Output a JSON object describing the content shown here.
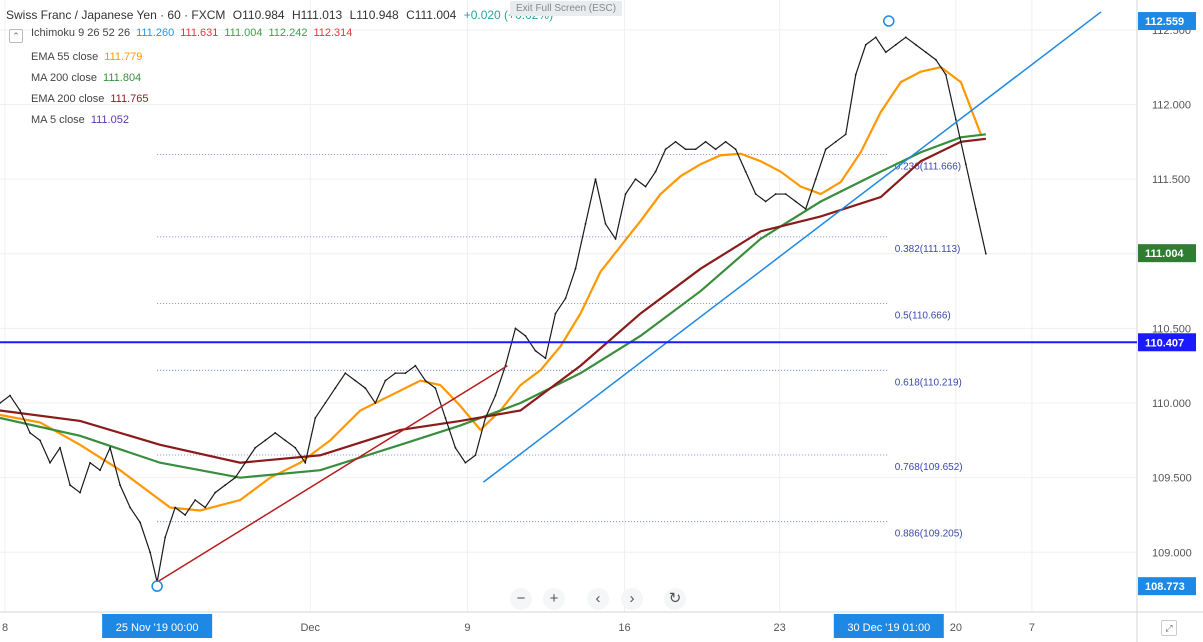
{
  "header": {
    "symbol": "Swiss Franc / Japanese Yen · 60 · FXCM",
    "open": "O110.984",
    "high": "H111.013",
    "low": "L110.948",
    "close": "C111.004",
    "change": "+0.020 (+0.02%)"
  },
  "fullscreen_badge": "Exit Full Screen (ESC)",
  "indicators": [
    {
      "label": "Ichimoku 9 26 52 26",
      "values": [
        {
          "text": "111.260",
          "color": "#2196f3"
        },
        {
          "text": "111.631",
          "color": "#e53935"
        },
        {
          "text": "111.004",
          "color": "#43a047"
        },
        {
          "text": "112.242",
          "color": "#43a047"
        },
        {
          "text": "112.314",
          "color": "#e53935"
        }
      ]
    },
    {
      "label": "EMA 55 close",
      "values": [
        {
          "text": "111.779",
          "color": "#ff9800"
        }
      ]
    },
    {
      "label": "MA 200 close",
      "values": [
        {
          "text": "111.804",
          "color": "#388e3c"
        }
      ]
    },
    {
      "label": "EMA 200 close",
      "values": [
        {
          "text": "111.765",
          "color": "#8b1a1a"
        }
      ]
    },
    {
      "label": "MA 5 close",
      "values": [
        {
          "text": "111.052",
          "color": "#5e35b1"
        }
      ]
    }
  ],
  "chart_data": {
    "type": "line",
    "title": "Swiss Franc / Japanese Yen · 60 · FXCM",
    "ylim": [
      108.6,
      112.7
    ],
    "y_ticks": [
      109.0,
      109.5,
      110.0,
      110.5,
      111.0,
      111.5,
      112.0,
      112.5
    ],
    "y_tick_labels": [
      "109.000",
      "109.500",
      "110.000",
      "110.500",
      "111.000",
      "111.500",
      "112.000",
      "112.500"
    ],
    "x_range": [
      0,
      1136
    ],
    "x_tick_labels": [
      {
        "label": "8",
        "x": 5
      },
      {
        "label": "Dec",
        "x": 310
      },
      {
        "label": "9",
        "x": 467
      },
      {
        "label": "16",
        "x": 624
      },
      {
        "label": "23",
        "x": 779
      },
      {
        "label": "20",
        "x": 955
      },
      {
        "label": "7",
        "x": 1031
      }
    ],
    "x_highlight_labels": [
      {
        "label": "25 Nov '19   00:00",
        "x": 157
      },
      {
        "label": "30 Dec '19   01:00",
        "x": 888
      }
    ],
    "price_labels": [
      {
        "text": "112.559",
        "value": 112.559,
        "color": "#1e88e5"
      },
      {
        "text": "111.004",
        "value": 111.004,
        "color": "#2e7d32"
      },
      {
        "text": "110.407",
        "value": 110.407,
        "color": "#1a1aff"
      },
      {
        "text": "108.773",
        "value": 108.773,
        "color": "#1e88e5"
      }
    ],
    "horizontal_line": {
      "value": 110.407,
      "color": "#1a1aff"
    },
    "fibonacci": [
      {
        "label": "0.236(111.666)",
        "value": 111.666
      },
      {
        "label": "0.382(111.113)",
        "value": 111.113
      },
      {
        "label": "0.5(110.666)",
        "value": 110.666
      },
      {
        "label": "0.618(110.219)",
        "value": 110.219
      },
      {
        "label": "0.768(109.652)",
        "value": 109.652
      },
      {
        "label": "0.886(109.205)",
        "value": 109.205
      }
    ],
    "fib_start_x": 157,
    "fib_end_x": 888,
    "swing_low": {
      "x": 157,
      "y": 108.773
    },
    "swing_high": {
      "x": 888,
      "y": 112.559
    },
    "trendlines": [
      {
        "name": "red-trendline",
        "color": "#b71c1c",
        "x1": 152,
        "y1": 108.78,
        "x2": 507,
        "y2": 110.25
      },
      {
        "name": "blue-trendline",
        "color": "#1e88e5",
        "x1": 483,
        "y1": 109.47,
        "x2": 1100,
        "y2": 112.62
      }
    ],
    "series": [
      {
        "name": "price",
        "color": "#1a1a1a",
        "x": [
          0,
          10,
          20,
          30,
          40,
          50,
          60,
          70,
          80,
          90,
          100,
          110,
          120,
          130,
          140,
          150,
          157,
          165,
          175,
          185,
          195,
          205,
          215,
          225,
          235,
          245,
          255,
          265,
          275,
          285,
          295,
          305,
          315,
          325,
          335,
          345,
          355,
          365,
          375,
          385,
          395,
          405,
          415,
          425,
          435,
          445,
          455,
          465,
          475,
          485,
          495,
          505,
          515,
          525,
          535,
          545,
          555,
          565,
          575,
          585,
          595,
          605,
          615,
          625,
          635,
          645,
          655,
          665,
          675,
          685,
          695,
          705,
          715,
          725,
          735,
          745,
          755,
          765,
          775,
          785,
          795,
          805,
          815,
          825,
          835,
          845,
          855,
          865,
          875,
          885,
          895,
          905,
          915,
          925,
          935,
          945,
          955,
          965,
          975,
          985
        ],
        "y": [
          110.0,
          110.05,
          109.95,
          109.8,
          109.75,
          109.6,
          109.7,
          109.45,
          109.4,
          109.6,
          109.55,
          109.7,
          109.45,
          109.3,
          109.2,
          109.0,
          108.8,
          109.1,
          109.3,
          109.25,
          109.35,
          109.3,
          109.4,
          109.45,
          109.5,
          109.6,
          109.7,
          109.75,
          109.8,
          109.75,
          109.7,
          109.6,
          109.9,
          110.0,
          110.1,
          110.2,
          110.15,
          110.1,
          110.0,
          110.15,
          110.2,
          110.2,
          110.25,
          110.15,
          110.1,
          109.9,
          109.7,
          109.6,
          109.65,
          109.9,
          110.05,
          110.25,
          110.5,
          110.45,
          110.35,
          110.3,
          110.6,
          110.7,
          110.9,
          111.2,
          111.5,
          111.2,
          111.1,
          111.4,
          111.5,
          111.45,
          111.55,
          111.7,
          111.75,
          111.7,
          111.7,
          111.75,
          111.7,
          111.75,
          111.7,
          111.55,
          111.4,
          111.35,
          111.4,
          111.4,
          111.35,
          111.3,
          111.5,
          111.7,
          111.75,
          111.8,
          112.2,
          112.4,
          112.45,
          112.35,
          112.4,
          112.45,
          112.4,
          112.35,
          112.3,
          112.2,
          111.9,
          111.6,
          111.3,
          111.0
        ]
      },
      {
        "name": "EMA 55 close",
        "color": "#ff9800",
        "x": [
          0,
          40,
          80,
          120,
          150,
          170,
          200,
          240,
          270,
          300,
          330,
          360,
          390,
          420,
          440,
          460,
          480,
          500,
          520,
          540,
          560,
          580,
          600,
          620,
          640,
          660,
          680,
          700,
          720,
          740,
          760,
          780,
          800,
          820,
          840,
          860,
          880,
          900,
          920,
          940,
          960,
          980
        ],
        "y": [
          109.92,
          109.87,
          109.72,
          109.55,
          109.4,
          109.3,
          109.28,
          109.35,
          109.5,
          109.6,
          109.75,
          109.95,
          110.05,
          110.15,
          110.12,
          109.98,
          109.82,
          109.95,
          110.12,
          110.22,
          110.38,
          110.6,
          110.88,
          111.05,
          111.22,
          111.4,
          111.52,
          111.6,
          111.66,
          111.67,
          111.62,
          111.55,
          111.45,
          111.4,
          111.48,
          111.68,
          111.95,
          112.15,
          112.22,
          112.25,
          112.15,
          111.8
        ]
      },
      {
        "name": "MA 200 close",
        "color": "#388e3c",
        "x": [
          0,
          80,
          160,
          240,
          320,
          400,
          460,
          520,
          580,
          640,
          700,
          760,
          820,
          880,
          920,
          960,
          985
        ],
        "y": [
          109.9,
          109.78,
          109.6,
          109.5,
          109.55,
          109.72,
          109.85,
          110.0,
          110.2,
          110.45,
          110.75,
          111.1,
          111.35,
          111.55,
          111.68,
          111.78,
          111.8
        ]
      },
      {
        "name": "EMA 200 close",
        "color": "#8b1a1a",
        "x": [
          0,
          80,
          160,
          240,
          320,
          400,
          460,
          520,
          580,
          640,
          700,
          760,
          820,
          880,
          920,
          960,
          985
        ],
        "y": [
          109.95,
          109.88,
          109.72,
          109.6,
          109.65,
          109.82,
          109.88,
          109.95,
          110.25,
          110.6,
          110.9,
          111.15,
          111.25,
          111.38,
          111.62,
          111.75,
          111.77
        ]
      }
    ]
  }
}
